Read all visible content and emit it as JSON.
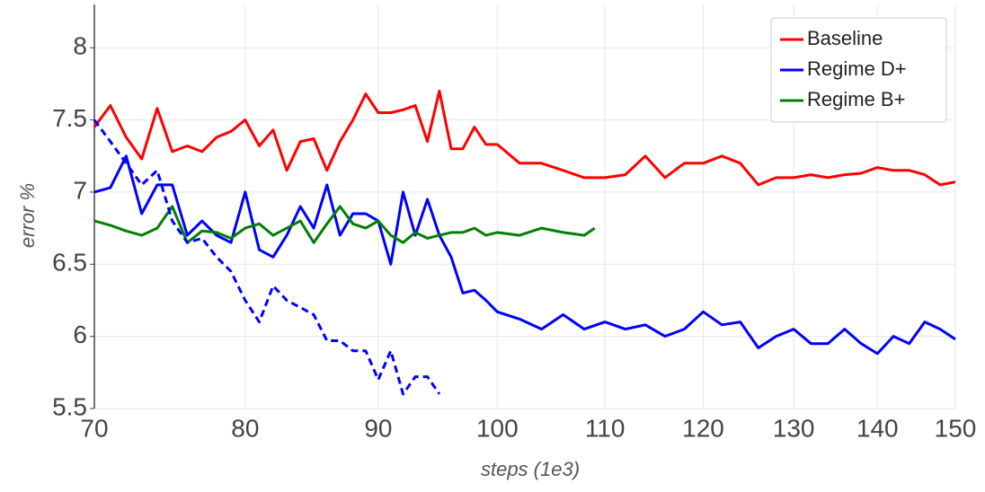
{
  "chart_data": {
    "type": "line",
    "xlabel": "steps (1e3)",
    "ylabel": "error %",
    "xscale": "log",
    "xlim": [
      70,
      150
    ],
    "xticks": [
      70,
      80,
      90,
      100,
      110,
      120,
      130,
      140,
      150
    ],
    "ylim": [
      5.5,
      8.3
    ],
    "yticks": [
      5.5,
      6,
      6.5,
      7,
      7.5,
      8
    ],
    "grid": true,
    "legend": "upper right",
    "series": [
      {
        "name": "Baseline",
        "color": "#ff0000",
        "x": [
          70,
          71,
          72,
          73,
          74,
          75,
          76,
          77,
          78,
          79,
          80,
          81,
          82,
          83,
          84,
          85,
          86,
          87,
          88,
          89,
          90,
          91,
          92,
          93,
          94,
          95,
          96,
          97,
          98,
          99,
          100,
          102,
          104,
          106,
          108,
          110,
          112,
          114,
          116,
          118,
          120,
          122,
          124,
          126,
          128,
          130,
          132,
          134,
          136,
          138,
          140,
          142,
          144,
          146,
          148,
          150
        ],
        "values": [
          7.45,
          7.6,
          7.38,
          7.23,
          7.58,
          7.28,
          7.32,
          7.28,
          7.38,
          7.42,
          7.5,
          7.32,
          7.43,
          7.15,
          7.35,
          7.37,
          7.15,
          7.35,
          7.5,
          7.68,
          7.55,
          7.55,
          7.57,
          7.6,
          7.35,
          7.7,
          7.3,
          7.3,
          7.45,
          7.33,
          7.33,
          7.2,
          7.2,
          7.15,
          7.1,
          7.1,
          7.12,
          7.25,
          7.1,
          7.2,
          7.2,
          7.25,
          7.2,
          7.05,
          7.1,
          7.1,
          7.12,
          7.1,
          7.12,
          7.13,
          7.17,
          7.15,
          7.15,
          7.12,
          7.05,
          7.07
        ]
      },
      {
        "name": "Regime D+",
        "color": "#0000ff",
        "x": [
          70,
          71,
          72,
          73,
          74,
          75,
          76,
          77,
          78,
          79,
          80,
          81,
          82,
          83,
          84,
          85,
          86,
          87,
          88,
          89,
          90,
          91,
          92,
          93,
          94,
          95,
          96,
          97,
          98,
          99,
          100,
          102,
          104,
          106,
          108,
          110,
          112,
          114,
          116,
          118,
          120,
          122,
          124,
          126,
          128,
          130,
          132,
          134,
          136,
          138,
          140,
          142,
          144,
          146,
          148,
          150
        ],
        "values": [
          7.0,
          7.03,
          7.25,
          6.85,
          7.05,
          7.05,
          6.7,
          6.8,
          6.7,
          6.65,
          7.0,
          6.6,
          6.55,
          6.7,
          6.9,
          6.75,
          7.05,
          6.7,
          6.85,
          6.85,
          6.8,
          6.5,
          7.0,
          6.7,
          6.95,
          6.7,
          6.55,
          6.3,
          6.32,
          6.25,
          6.17,
          6.12,
          6.05,
          6.15,
          6.05,
          6.1,
          6.05,
          6.08,
          6.0,
          6.05,
          6.17,
          6.08,
          6.1,
          5.92,
          6.0,
          6.05,
          5.95,
          5.95,
          6.05,
          5.95,
          5.88,
          6.0,
          5.95,
          6.1,
          6.05,
          5.98
        ]
      },
      {
        "name": "Regime B+",
        "color": "#008000",
        "x": [
          70,
          71,
          72,
          73,
          74,
          75,
          76,
          77,
          78,
          79,
          80,
          81,
          82,
          83,
          84,
          85,
          86,
          87,
          88,
          89,
          90,
          91,
          92,
          93,
          94,
          95,
          96,
          97,
          98,
          99,
          100,
          102,
          104,
          106,
          108,
          109
        ],
        "values": [
          6.8,
          6.77,
          6.73,
          6.7,
          6.75,
          6.9,
          6.65,
          6.73,
          6.72,
          6.68,
          6.75,
          6.78,
          6.7,
          6.75,
          6.8,
          6.65,
          6.78,
          6.9,
          6.78,
          6.75,
          6.8,
          6.7,
          6.65,
          6.72,
          6.68,
          6.7,
          6.72,
          6.72,
          6.75,
          6.7,
          6.72,
          6.7,
          6.75,
          6.72,
          6.7,
          6.75
        ]
      },
      {
        "color": "#0000ff",
        "dash": true,
        "x": [
          70,
          71,
          72,
          73,
          74,
          75,
          76,
          77,
          78,
          79,
          80,
          81,
          82,
          83,
          84,
          85,
          86,
          87,
          88,
          89,
          90,
          91,
          92,
          93,
          94,
          95
        ],
        "values": [
          7.5,
          7.35,
          7.2,
          7.05,
          7.15,
          6.8,
          6.65,
          6.68,
          6.55,
          6.45,
          6.25,
          6.1,
          6.35,
          6.25,
          6.2,
          6.15,
          5.97,
          5.97,
          5.9,
          5.9,
          5.7,
          5.9,
          5.6,
          5.72,
          5.72,
          5.6
        ]
      }
    ]
  }
}
